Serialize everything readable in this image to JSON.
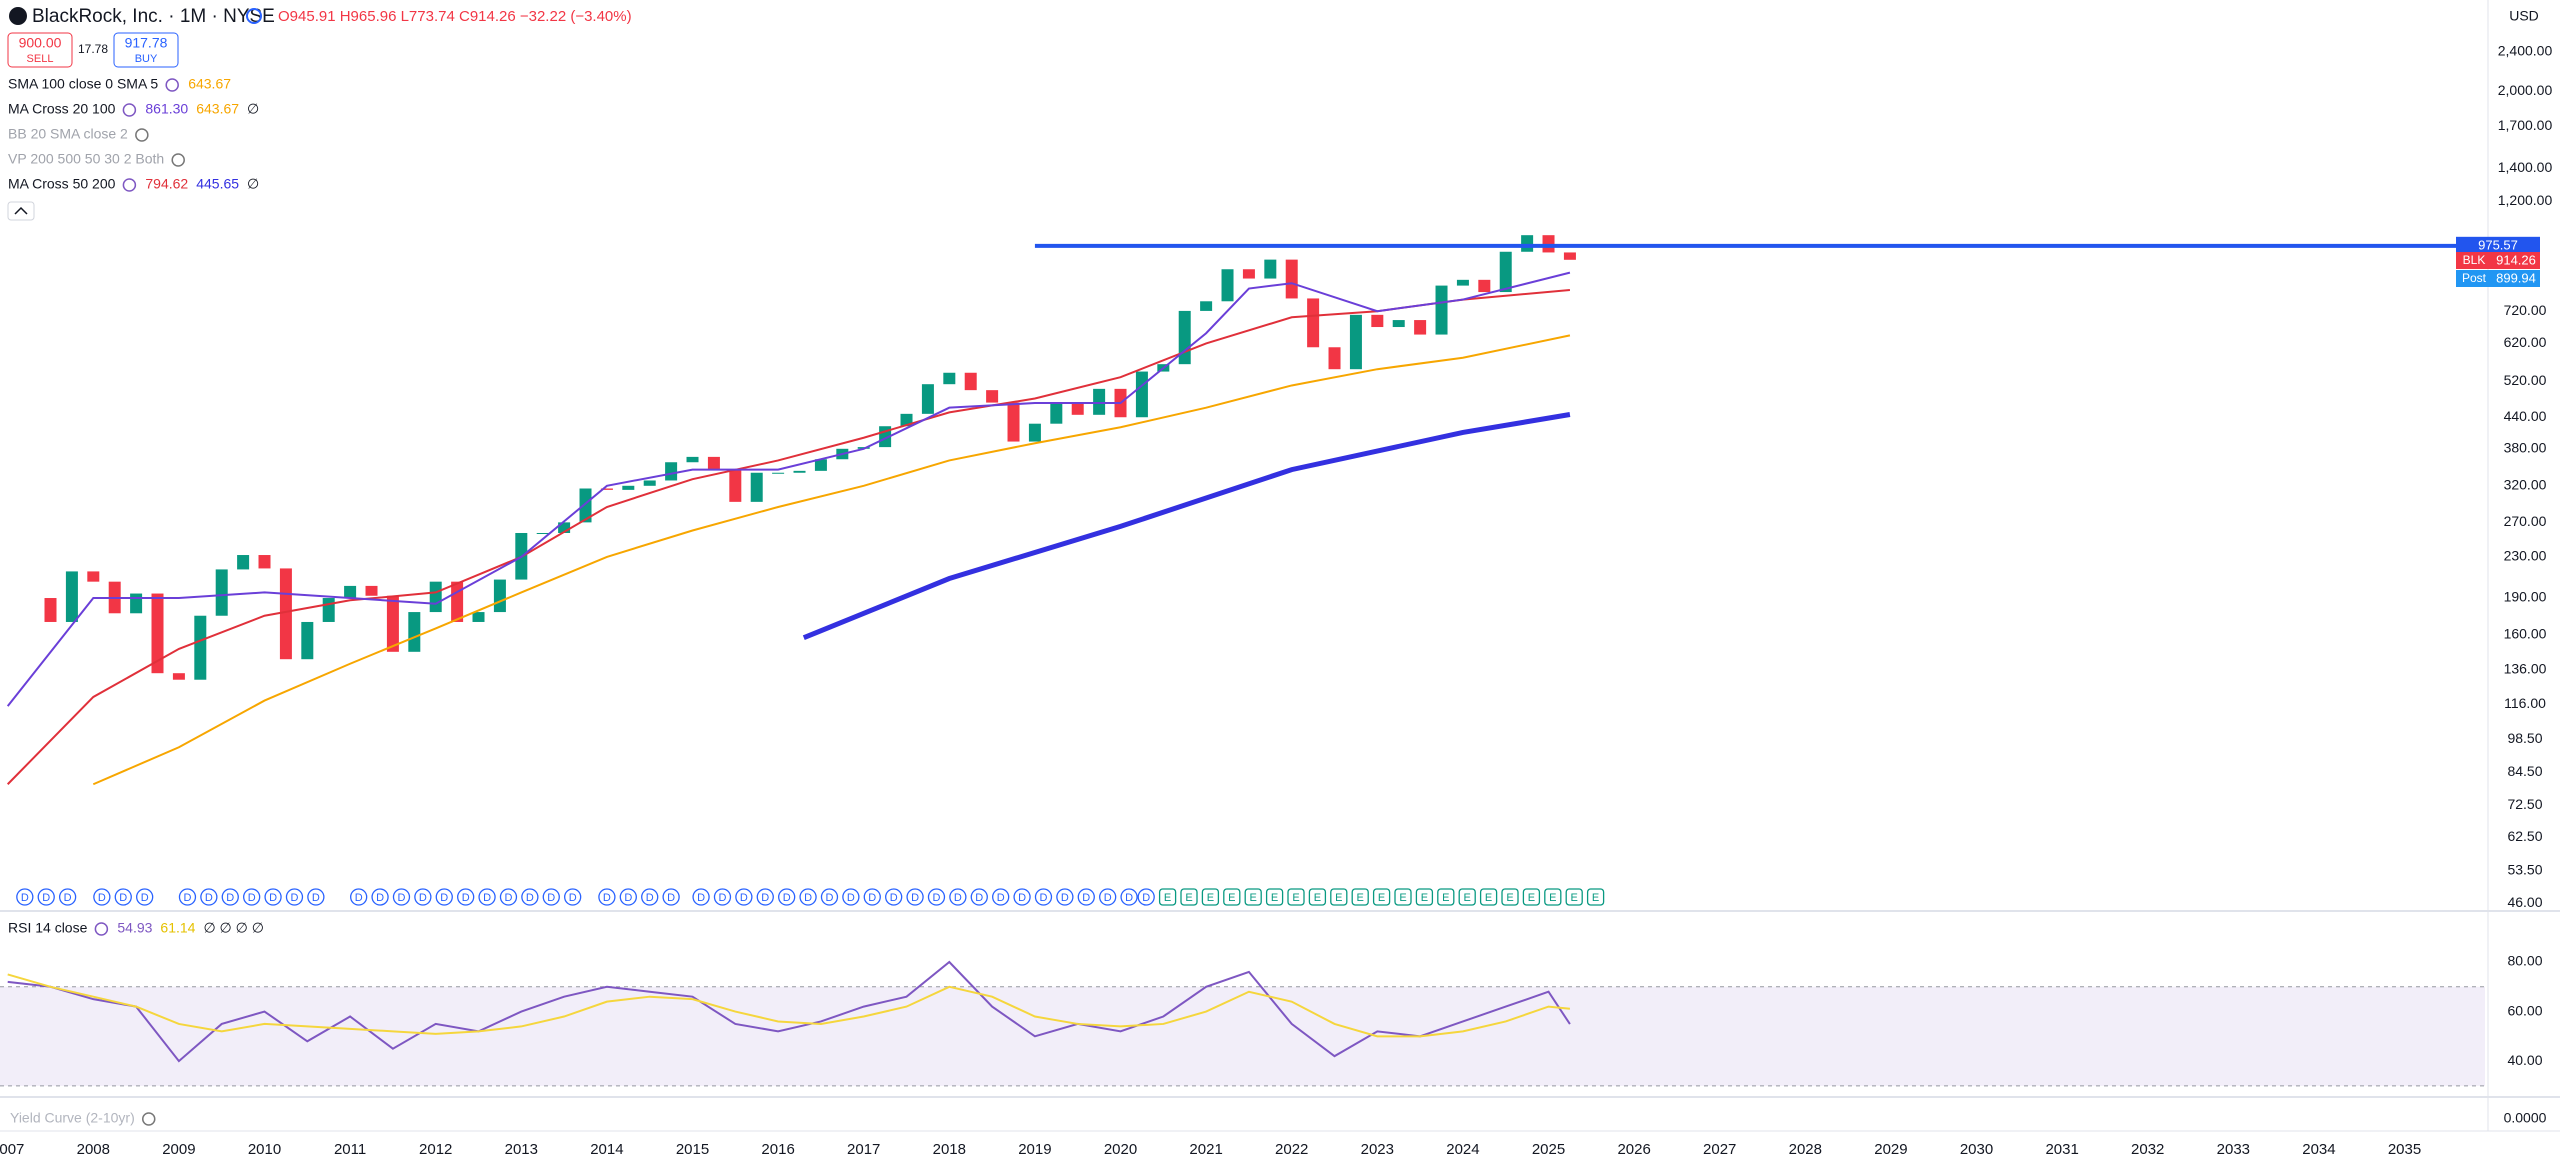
{
  "header": {
    "title": "BlackRock, Inc. · 1M · NYSE",
    "ohlc": "O945.91 H965.96 L773.74 C914.26 −32.22 (−3.40%)",
    "sell_price": "900.00",
    "sell": "SELL",
    "spread": "17.78",
    "buy_price": "917.78",
    "buy": "BUY",
    "currency": "USD"
  },
  "indicators": [
    {
      "name": "SMA 100 close 0 SMA 5",
      "values": [
        "643.67"
      ],
      "colors": [
        "#f7a600"
      ]
    },
    {
      "name": "MA Cross 20 100",
      "values": [
        "861.30",
        "643.67",
        "∅"
      ],
      "colors": [
        "#6a3fd8",
        "#f7a600",
        "#131722"
      ]
    },
    {
      "name": "BB 20 SMA close 2",
      "values": [],
      "colors": []
    },
    {
      "name": "VP 200 500 50 30 2 Both",
      "values": [],
      "colors": []
    },
    {
      "name": "MA Cross 50 200",
      "values": [
        "794.62",
        "445.65",
        "∅"
      ],
      "colors": [
        "#e0303a",
        "#3330e0",
        "#131722"
      ]
    }
  ],
  "rsi_legend": {
    "name": "RSI 14 close",
    "values": [
      "54.93",
      "61.14",
      "∅ ∅ ∅ ∅"
    ]
  },
  "yield_legend": "Yield Curve (2-10yr)",
  "chart_data": [
    {
      "type": "candlestick",
      "log_scale": true,
      "xlim": [
        2006.91,
        2035.94
      ],
      "ylim": [
        44.4,
        3056
      ],
      "xticks": [
        2007,
        2008,
        2009,
        2010,
        2011,
        2012,
        2013,
        2014,
        2015,
        2016,
        2017,
        2018,
        2019,
        2020,
        2021,
        2022,
        2023,
        2024,
        2025,
        2026,
        2027,
        2028,
        2029,
        2030,
        2031,
        2032,
        2033,
        2034,
        2035
      ],
      "yticks": [
        {
          "value": 2400,
          "label": "2,400.00"
        },
        {
          "value": 2000,
          "label": "2,000.00"
        },
        {
          "value": 1700,
          "label": "1,700.00"
        },
        {
          "value": 1400,
          "label": "1,400.00"
        },
        {
          "value": 1200,
          "label": "1,200.00"
        },
        {
          "value": 720,
          "label": "720.00"
        },
        {
          "value": 620,
          "label": "620.00"
        },
        {
          "value": 520,
          "label": "520.00"
        },
        {
          "value": 440,
          "label": "440.00"
        },
        {
          "value": 380,
          "label": "380.00"
        },
        {
          "value": 320,
          "label": "320.00"
        },
        {
          "value": 270,
          "label": "270.00"
        },
        {
          "value": 230,
          "label": "230.00"
        },
        {
          "value": 190,
          "label": "190.00"
        },
        {
          "value": 160,
          "label": "160.00"
        },
        {
          "value": 136,
          "label": "136.00"
        },
        {
          "value": 116,
          "label": "116.00"
        },
        {
          "value": 98.5,
          "label": "98.50"
        },
        {
          "value": 84.5,
          "label": "84.50"
        },
        {
          "value": 72.5,
          "label": "72.50"
        },
        {
          "value": 62.5,
          "label": "62.50"
        },
        {
          "value": 53.5,
          "label": "53.50"
        },
        {
          "value": 46,
          "label": "46.00"
        }
      ],
      "up_color": "#089981",
      "down_color": "#f23645",
      "x": [
        2007.5,
        2007.75,
        2008,
        2008.25,
        2008.5,
        2008.75,
        2009,
        2009.25,
        2009.5,
        2009.75,
        2010,
        2010.25,
        2010.5,
        2010.75,
        2011,
        2011.25,
        2011.5,
        2011.75,
        2012,
        2012.25,
        2012.5,
        2012.75,
        2013,
        2013.25,
        2013.5,
        2013.75,
        2014,
        2014.25,
        2014.5,
        2014.75,
        2015,
        2015.25,
        2015.5,
        2015.75,
        2016,
        2016.25,
        2016.5,
        2016.75,
        2017,
        2017.25,
        2017.5,
        2017.75,
        2018,
        2018.25,
        2018.5,
        2018.75,
        2019,
        2019.25,
        2019.5,
        2019.75,
        2020,
        2020.25,
        2020.5,
        2020.75,
        2021,
        2021.25,
        2021.5,
        2021.75,
        2022,
        2022.25,
        2022.5,
        2022.75,
        2023,
        2023.25,
        2023.5,
        2023.75,
        2024,
        2024.25,
        2024.5,
        2024.75,
        2025,
        2025.25
      ],
      "open": [
        190,
        170,
        215,
        205,
        177,
        194,
        134,
        130,
        175,
        217,
        232,
        218,
        143,
        170,
        190,
        201,
        192,
        148,
        178,
        205,
        170,
        178,
        207,
        257,
        257,
        270,
        316,
        314,
        320,
        328,
        357,
        366,
        346,
        297,
        340,
        340,
        343,
        362,
        380,
        383,
        422,
        447,
        513,
        541,
        499,
        471,
        393,
        427,
        469,
        445,
        502,
        440,
        544,
        563,
        721,
        754,
        875,
        838,
        915,
        764,
        609,
        550,
        708,
        669,
        691,
        646,
        811,
        833,
        787,
        949,
        1025,
        946
      ],
      "close": [
        170,
        215,
        205,
        177,
        194,
        134,
        130,
        175,
        217,
        232,
        218,
        143,
        170,
        190,
        201,
        192,
        148,
        178,
        205,
        170,
        178,
        207,
        257,
        257,
        270,
        316,
        314,
        320,
        328,
        357,
        366,
        346,
        297,
        340,
        340,
        343,
        362,
        380,
        383,
        422,
        447,
        513,
        541,
        499,
        471,
        393,
        427,
        469,
        445,
        502,
        440,
        544,
        563,
        721,
        754,
        875,
        838,
        915,
        764,
        609,
        550,
        708,
        669,
        691,
        646,
        811,
        833,
        787,
        949,
        1025,
        946,
        914.26
      ],
      "series": [
        {
          "color": "#f7a600",
          "width": 2,
          "x": [
            2008,
            2009,
            2010,
            2011,
            2012,
            2013,
            2014,
            2015,
            2016,
            2017,
            2018,
            2019,
            2020,
            2021,
            2022,
            2023,
            2024,
            2025.25
          ],
          "values": [
            80,
            95,
            118,
            140,
            165,
            195,
            230,
            260,
            290,
            320,
            360,
            390,
            420,
            460,
            510,
            550,
            580,
            643.67
          ]
        },
        {
          "color": "#e0303a",
          "width": 2,
          "x": [
            2007,
            2008,
            2009,
            2010,
            2011,
            2012,
            2013,
            2014,
            2015,
            2016,
            2017,
            2018,
            2019,
            2020,
            2021,
            2022,
            2023,
            2024,
            2025.25
          ],
          "values": [
            80,
            120,
            150,
            175,
            188,
            195,
            230,
            290,
            330,
            360,
            400,
            450,
            480,
            530,
            620,
            700,
            720,
            760,
            794.62
          ]
        },
        {
          "color": "#6a3fd8",
          "width": 2,
          "x": [
            2007,
            2008,
            2009,
            2010,
            2011,
            2012,
            2013,
            2014,
            2015,
            2016,
            2017,
            2018,
            2019,
            2020,
            2021,
            2021.5,
            2022,
            2023,
            2024,
            2025.25
          ],
          "values": [
            115,
            190,
            190,
            195,
            190,
            185,
            230,
            320,
            345,
            345,
            380,
            460,
            470,
            470,
            650,
            800,
            820,
            720,
            760,
            861.3
          ]
        },
        {
          "color": "#3330e0",
          "width": 5,
          "x": [
            2016.3,
            2018,
            2020,
            2022,
            2024,
            2025.25
          ],
          "values": [
            158,
            208,
            265,
            345,
            410,
            445.65
          ]
        }
      ],
      "hline": {
        "value": 975.57,
        "from": 2019.0,
        "color": "#2255ee"
      },
      "last": {
        "label": "BLK",
        "value": 914.26
      },
      "post": {
        "label": "Post",
        "value": 899.94
      },
      "events": [
        {
          "label": "D",
          "x": [
            2007.2,
            2007.45,
            2007.7,
            2008.1,
            2008.35,
            2008.6,
            2009.1,
            2009.35,
            2009.6,
            2009.85,
            2010.1,
            2010.35,
            2010.6,
            2011.1,
            2011.35,
            2011.6,
            2011.85,
            2012.1,
            2012.35,
            2012.6,
            2012.85,
            2013.1,
            2013.35,
            2013.6,
            2014.0,
            2014.25,
            2014.5,
            2014.75,
            2015.1,
            2015.35,
            2015.6,
            2015.85,
            2016.1,
            2016.35,
            2016.6,
            2016.85,
            2017.1,
            2017.35,
            2017.6,
            2017.85,
            2018.1,
            2018.35,
            2018.6,
            2018.85,
            2019.1,
            2019.35,
            2019.6,
            2019.85,
            2020.1,
            2020.3
          ]
        },
        {
          "label": "E",
          "x": [
            2020.55,
            2020.8,
            2021.05,
            2021.3,
            2021.55,
            2021.8,
            2022.05,
            2022.3,
            2022.55,
            2022.8,
            2023.05,
            2023.3,
            2023.55,
            2023.8,
            2024.05,
            2024.3,
            2024.55,
            2024.8,
            2025.05,
            2025.3,
            2025.55
          ]
        }
      ]
    },
    {
      "type": "line",
      "xlim": [
        2006.91,
        2035.94
      ],
      "ylim": [
        25.5,
        100.6
      ],
      "band": [
        30,
        70
      ],
      "yticks": [
        {
          "value": 80,
          "label": "80.00"
        },
        {
          "value": 60,
          "label": "60.00"
        },
        {
          "value": 40,
          "label": "40.00"
        }
      ],
      "x": [
        2007,
        2007.5,
        2008,
        2008.5,
        2009,
        2009.5,
        2010,
        2010.5,
        2011,
        2011.5,
        2012,
        2012.5,
        2013,
        2013.5,
        2014,
        2014.5,
        2015,
        2015.5,
        2016,
        2016.5,
        2017,
        2017.5,
        2018,
        2018.5,
        2019,
        2019.5,
        2020,
        2020.5,
        2021,
        2021.5,
        2022,
        2022.5,
        2023,
        2023.5,
        2024,
        2024.5,
        2025,
        2025.25
      ],
      "series": [
        {
          "color": "#7e57c2",
          "values": [
            72,
            70,
            65,
            62,
            40,
            55,
            60,
            48,
            58,
            45,
            55,
            52,
            60,
            66,
            70,
            68,
            66,
            55,
            52,
            56,
            62,
            66,
            80,
            62,
            50,
            55,
            52,
            58,
            70,
            76,
            55,
            42,
            52,
            50,
            56,
            62,
            68,
            54.93
          ]
        },
        {
          "color": "#f5d63d",
          "values": [
            75,
            70,
            66,
            62,
            55,
            52,
            55,
            54,
            53,
            52,
            51,
            52,
            54,
            58,
            64,
            66,
            65,
            60,
            56,
            55,
            58,
            62,
            70,
            66,
            58,
            55,
            54,
            55,
            60,
            68,
            64,
            55,
            50,
            50,
            52,
            56,
            62,
            61.14
          ]
        }
      ]
    },
    {
      "type": "line",
      "yticks": [
        {
          "value": 0,
          "label": "0.0000"
        }
      ]
    }
  ]
}
